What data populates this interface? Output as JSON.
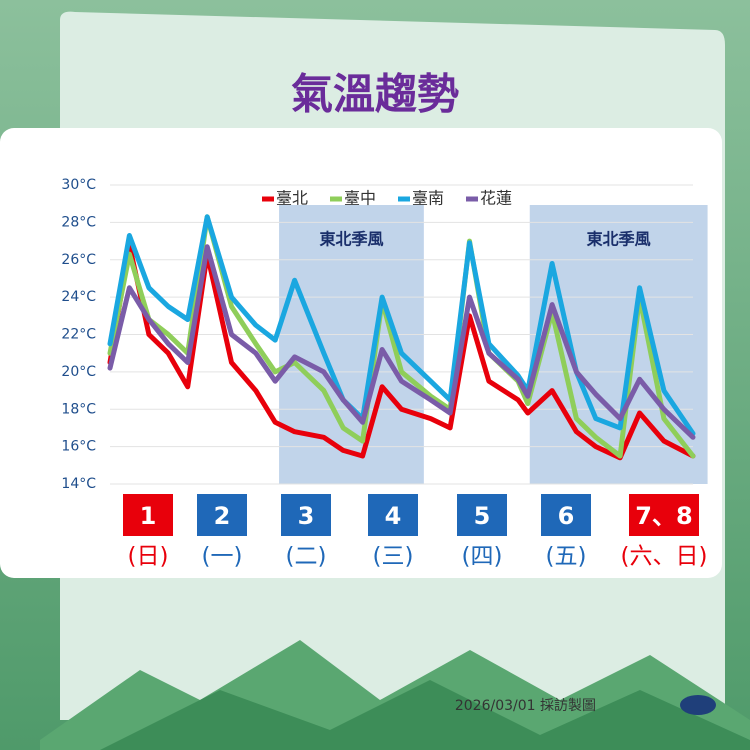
{
  "title": "氣溫趨勢",
  "footer": "2026/03/01 採訪製圖",
  "chart_data": {
    "type": "line",
    "x": [
      0,
      2,
      4,
      6,
      8,
      10,
      12.5,
      15,
      17,
      19,
      22,
      24,
      26,
      28,
      30,
      33,
      35,
      37,
      39,
      42,
      43,
      45.5,
      48,
      50,
      52.5,
      54.5,
      57,
      60
    ],
    "xlim": [
      0,
      60
    ],
    "ylim": [
      14,
      30
    ],
    "yticks": [
      {
        "value": 14,
        "label": "14°C"
      },
      {
        "value": 16,
        "label": "16°C"
      },
      {
        "value": 18,
        "label": "18°C"
      },
      {
        "value": 20,
        "label": "20°C"
      },
      {
        "value": 22,
        "label": "22°C"
      },
      {
        "value": 24,
        "label": "24°C"
      },
      {
        "value": 26,
        "label": "26°C"
      },
      {
        "value": 28,
        "label": "28°C"
      },
      {
        "value": 30,
        "label": "30°C"
      }
    ],
    "grid": true,
    "series": [
      {
        "name": "臺北",
        "color": "#e8000b",
        "values": [
          20.5,
          26.8,
          22,
          21,
          19.2,
          26.3,
          20.5,
          19,
          17.3,
          16.8,
          16.5,
          15.8,
          15.5,
          19.2,
          18,
          17.5,
          17,
          23,
          19.5,
          18.5,
          17.8,
          19,
          16.8,
          16,
          15.4,
          17.8,
          16.3,
          15.5
        ]
      },
      {
        "name": "臺中",
        "color": "#8fce5a",
        "values": [
          21,
          26.3,
          22.8,
          22,
          21,
          28.3,
          23.5,
          21.5,
          20,
          20.5,
          19,
          17,
          16.3,
          23.8,
          20,
          18.7,
          18,
          27,
          21,
          19.5,
          18.3,
          23.2,
          17.5,
          16.5,
          15.5,
          24,
          17.5,
          15.5
        ]
      },
      {
        "name": "臺南",
        "color": "#1aa7e0",
        "values": [
          21.5,
          27.3,
          24.5,
          23.5,
          22.8,
          28.3,
          24,
          22.5,
          21.7,
          24.9,
          21,
          18.5,
          17.5,
          24,
          21,
          19.5,
          18.5,
          26.9,
          21.5,
          19.8,
          19,
          25.8,
          20,
          17.5,
          17,
          24.5,
          19,
          16.7
        ]
      },
      {
        "name": "花蓮",
        "color": "#7a5ca8",
        "values": [
          20.2,
          24.5,
          22.8,
          21.5,
          20.5,
          26.7,
          22,
          21,
          19.5,
          20.8,
          20,
          18.5,
          17.3,
          21.2,
          19.5,
          18.5,
          17.8,
          24,
          21,
          19.6,
          18.7,
          23.6,
          20,
          18.8,
          17.5,
          19.6,
          18,
          16.5
        ]
      }
    ],
    "shaded": [
      {
        "label": "東北季風",
        "from": 17.4,
        "to": 32.3
      },
      {
        "label": "東北季風",
        "from": 43.2,
        "to": 61.5
      }
    ],
    "days": [
      {
        "label": "1",
        "weekday": "(日)",
        "color": "#e8000b"
      },
      {
        "label": "2",
        "weekday": "(一)",
        "color": "#1f68b8"
      },
      {
        "label": "3",
        "weekday": "(二)",
        "color": "#1f68b8"
      },
      {
        "label": "4",
        "weekday": "(三)",
        "color": "#1f68b8"
      },
      {
        "label": "5",
        "weekday": "(四)",
        "color": "#1f68b8"
      },
      {
        "label": "6",
        "weekday": "(五)",
        "color": "#1f68b8"
      },
      {
        "label": "7、8",
        "weekday": "(六、日)",
        "color": "#e8000b"
      }
    ]
  }
}
